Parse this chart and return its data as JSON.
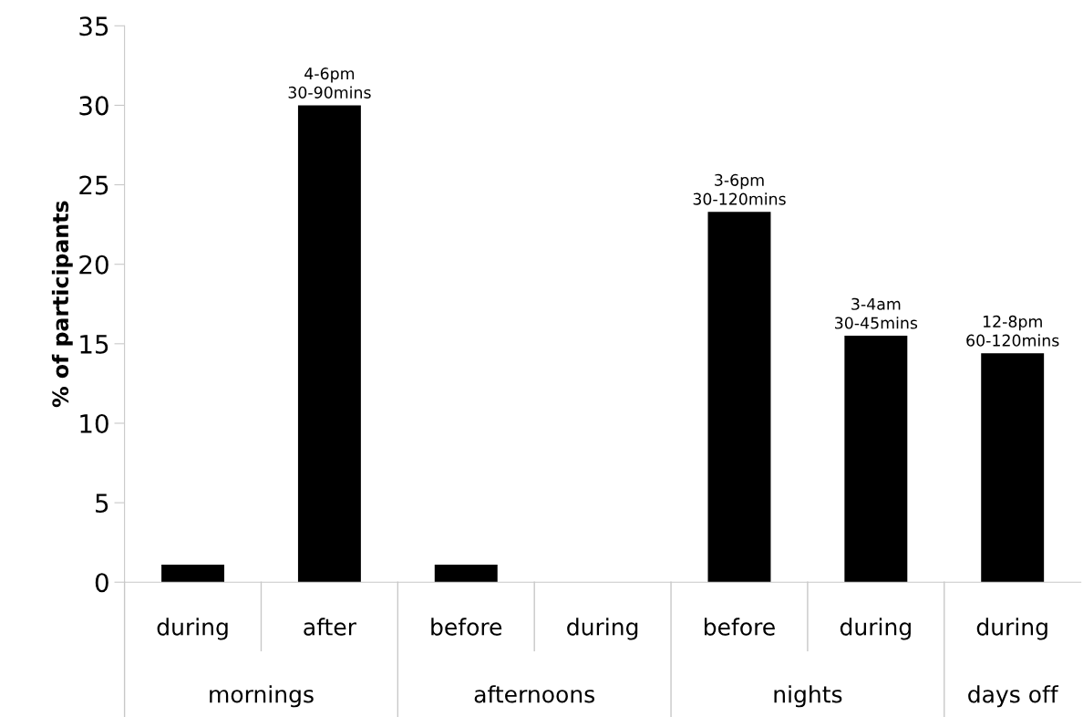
{
  "chart_data": {
    "type": "bar",
    "ylabel": "% of participants",
    "categories": [
      "during",
      "after",
      "before",
      "during",
      "before",
      "during",
      "during"
    ],
    "values": [
      1.1,
      30,
      1.1,
      0,
      23.3,
      15.5,
      14.4
    ],
    "color": "#000000",
    "value_labels": [
      null,
      "4-6pm\n30-90mins",
      null,
      null,
      "3-6pm\n30-120mins",
      "3-4am\n30-45mins",
      "12-8pm\n60-120mins"
    ],
    "annotations": [
      "mornings",
      "afternoons",
      "nights",
      "days off"
    ],
    "ylim": [
      0,
      35
    ],
    "yticks": [
      0,
      5,
      10,
      15,
      20,
      25,
      30,
      35
    ],
    "grid": false,
    "legend": false
  }
}
